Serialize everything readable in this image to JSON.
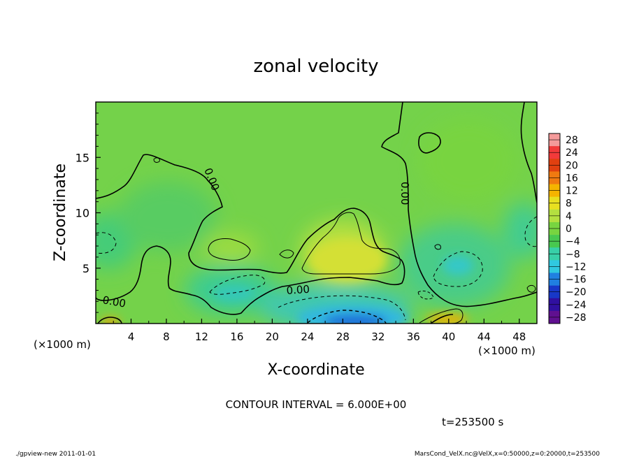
{
  "chart_data": {
    "type": "heatmap",
    "title": "zonal velocity",
    "xlabel": "X-coordinate",
    "ylabel": "Z-coordinate",
    "x_unit_label": "(×1000 m)",
    "y_unit_label": "(×1000 m)",
    "xlim": [
      0,
      50
    ],
    "ylim": [
      0,
      20
    ],
    "x_ticks": [
      4,
      8,
      12,
      16,
      20,
      24,
      28,
      32,
      36,
      40,
      44,
      48
    ],
    "y_ticks": [
      5,
      10,
      15
    ],
    "colorbar": {
      "levels": [
        28,
        24,
        20,
        16,
        12,
        8,
        4,
        0,
        -4,
        -8,
        -12,
        -16,
        -20,
        -24,
        -28
      ],
      "colors": [
        "#f49a9a",
        "#f23a3a",
        "#e04010",
        "#f07a10",
        "#f5b400",
        "#e8e020",
        "#b4e040",
        "#78d440",
        "#48c850",
        "#38d0a8",
        "#30c8e0",
        "#2080e0",
        "#1838c8",
        "#3010a0",
        "#601090"
      ]
    },
    "contour_labels": [
      {
        "text": "0.00",
        "x": 2.8,
        "z": 2.3
      },
      {
        "text": "0.00",
        "x": 23.0,
        "z": 3.0
      },
      {
        "text": "0.00",
        "x": 13.2,
        "z": 12.0
      },
      {
        "text": "0.00",
        "x": 35.0,
        "z": 11.6
      }
    ],
    "features": [
      {
        "kind": "max",
        "x": 28,
        "z": 5.5,
        "value": 8
      },
      {
        "kind": "min",
        "x": 29,
        "z": 0.5,
        "value": -16
      },
      {
        "kind": "max",
        "x": 40.5,
        "z": 0.5,
        "value": 12
      },
      {
        "kind": "max",
        "x": 1.5,
        "z": 0.3,
        "value": 12
      }
    ],
    "grid": false,
    "legend": "right"
  },
  "annotations": {
    "contour_interval": "CONTOUR INTERVAL = 6.000E+00",
    "time": "t=253500 s",
    "footer_left": "./gpview-new  2011-01-01",
    "footer_right": "MarsCond_VelX.nc@VelX,x=0:50000,z=0:20000,t=253500"
  }
}
